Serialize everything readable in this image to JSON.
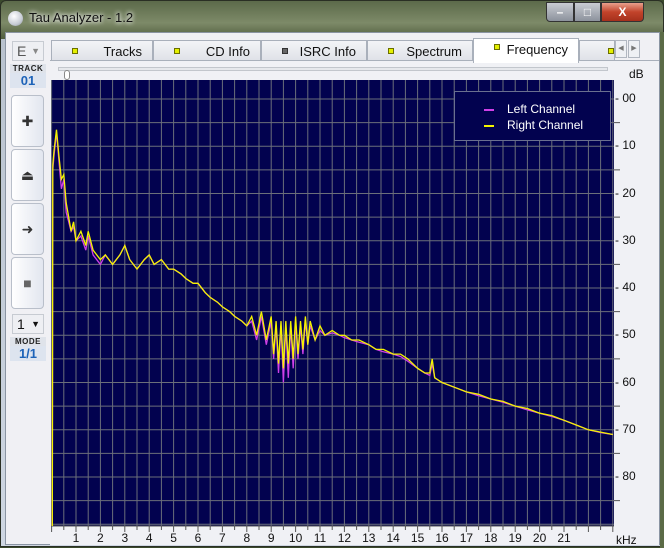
{
  "window": {
    "title": "Tau Analyzer - 1.2",
    "minimize": "–",
    "maximize": "□",
    "close": "X"
  },
  "left_panel": {
    "drive_select": "E",
    "track_label": "TRACK",
    "track_value": "01",
    "buttons": [
      {
        "name": "zoom-in",
        "glyph": "✚"
      },
      {
        "name": "eject",
        "glyph": "⏏"
      },
      {
        "name": "play",
        "glyph": "➜"
      },
      {
        "name": "stop",
        "glyph": "■"
      }
    ],
    "mode_select": "1",
    "mode_label": "MODE",
    "mode_value": "1/1"
  },
  "tabs": [
    {
      "label": "Tracks",
      "indicator": "#e4f000",
      "active": false
    },
    {
      "label": "CD Info",
      "indicator": "#e4f000",
      "active": false
    },
    {
      "label": "ISRC Info",
      "indicator": "#666666",
      "active": false
    },
    {
      "label": "Spectrum",
      "indicator": "#e4f000",
      "active": false
    },
    {
      "label": "Frequency",
      "indicator": "#e4f000",
      "active": true
    },
    {
      "label": "",
      "indicator": "#e4f000",
      "active": false
    }
  ],
  "tab_scroll": {
    "left": "◀",
    "right": "▶"
  },
  "chart_data": {
    "type": "line",
    "xlabel": "kHz",
    "ylabel": "dB",
    "xlim": [
      0,
      23.1
    ],
    "ylim": [
      -3.8,
      90.6
    ],
    "y_inverted": true,
    "grid": true,
    "xticks": [
      1,
      2,
      3,
      4,
      5,
      6,
      7,
      8,
      9,
      10,
      11,
      12,
      13,
      14,
      15,
      16,
      17,
      18,
      19,
      20,
      21
    ],
    "yticks": [
      {
        "v": 0,
        "label": "00"
      },
      {
        "v": 10,
        "label": "10"
      },
      {
        "v": 20,
        "label": "20"
      },
      {
        "v": 30,
        "label": "30"
      },
      {
        "v": 40,
        "label": "40"
      },
      {
        "v": 50,
        "label": "50"
      },
      {
        "v": 60,
        "label": "60"
      },
      {
        "v": 70,
        "label": "70"
      },
      {
        "v": 80,
        "label": "80"
      }
    ],
    "legend_position": "top-right",
    "background": "#02024f",
    "grid_color": "#6b6f7a",
    "series": [
      {
        "name": "Left Channel",
        "color": "#d040e8",
        "points": [
          [
            0.03,
            90.6
          ],
          [
            0.05,
            15
          ],
          [
            0.1,
            12
          ],
          [
            0.2,
            7
          ],
          [
            0.3,
            13
          ],
          [
            0.4,
            19
          ],
          [
            0.5,
            17
          ],
          [
            0.6,
            24
          ],
          [
            0.7,
            26
          ],
          [
            0.8,
            28
          ],
          [
            0.9,
            27
          ],
          [
            1.0,
            30
          ],
          [
            1.2,
            29
          ],
          [
            1.4,
            32
          ],
          [
            1.5,
            29
          ],
          [
            1.7,
            33
          ],
          [
            2.0,
            35
          ],
          [
            2.2,
            33
          ],
          [
            2.5,
            35
          ],
          [
            2.8,
            33
          ],
          [
            3.0,
            31
          ],
          [
            3.2,
            34
          ],
          [
            3.5,
            36
          ],
          [
            3.8,
            34
          ],
          [
            4.0,
            33
          ],
          [
            4.2,
            35
          ],
          [
            4.5,
            34
          ],
          [
            4.8,
            36
          ],
          [
            5.0,
            36
          ],
          [
            5.3,
            37
          ],
          [
            5.5,
            38
          ],
          [
            5.8,
            39
          ],
          [
            6.0,
            39
          ],
          [
            6.3,
            41
          ],
          [
            6.5,
            42
          ],
          [
            6.8,
            43
          ],
          [
            7.0,
            44
          ],
          [
            7.3,
            45
          ],
          [
            7.5,
            46
          ],
          [
            7.8,
            47
          ],
          [
            8.0,
            48
          ],
          [
            8.2,
            47
          ],
          [
            8.4,
            51
          ],
          [
            8.6,
            46
          ],
          [
            8.8,
            52
          ],
          [
            9.0,
            47
          ],
          [
            9.1,
            55
          ],
          [
            9.2,
            48
          ],
          [
            9.3,
            58
          ],
          [
            9.4,
            48
          ],
          [
            9.5,
            60
          ],
          [
            9.6,
            48
          ],
          [
            9.7,
            59
          ],
          [
            9.8,
            48
          ],
          [
            9.9,
            57
          ],
          [
            10.0,
            47
          ],
          [
            10.1,
            55
          ],
          [
            10.2,
            48
          ],
          [
            10.3,
            54
          ],
          [
            10.4,
            47
          ],
          [
            10.5,
            52
          ],
          [
            10.6,
            48
          ],
          [
            10.8,
            51
          ],
          [
            11.0,
            49
          ],
          [
            11.2,
            50
          ],
          [
            11.5,
            49.5
          ],
          [
            11.8,
            50
          ],
          [
            12.0,
            50.5
          ],
          [
            12.3,
            51
          ],
          [
            12.6,
            51.5
          ],
          [
            13.0,
            52
          ],
          [
            13.3,
            53
          ],
          [
            13.6,
            53.5
          ],
          [
            14.0,
            54
          ],
          [
            14.3,
            54.5
          ],
          [
            14.6,
            55.5
          ],
          [
            15.0,
            57
          ],
          [
            15.3,
            58
          ],
          [
            15.5,
            58.5
          ],
          [
            15.6,
            56
          ],
          [
            15.7,
            59
          ],
          [
            16.0,
            60
          ],
          [
            16.5,
            61
          ],
          [
            17.0,
            62
          ],
          [
            17.5,
            62.8
          ],
          [
            18.0,
            63.5
          ],
          [
            18.5,
            64.2
          ],
          [
            19.0,
            65
          ],
          [
            19.5,
            65.8
          ],
          [
            20.0,
            66.5
          ],
          [
            20.5,
            67.2
          ],
          [
            21.0,
            68
          ],
          [
            21.5,
            69
          ],
          [
            22.0,
            70
          ],
          [
            22.5,
            70.6
          ],
          [
            23.0,
            71
          ]
        ]
      },
      {
        "name": "Right Channel",
        "color": "#f4f400",
        "points": [
          [
            0.03,
            90.6
          ],
          [
            0.05,
            14
          ],
          [
            0.1,
            11
          ],
          [
            0.2,
            6.5
          ],
          [
            0.3,
            12
          ],
          [
            0.4,
            17
          ],
          [
            0.5,
            16
          ],
          [
            0.6,
            22
          ],
          [
            0.7,
            25
          ],
          [
            0.8,
            28
          ],
          [
            0.9,
            26
          ],
          [
            1.0,
            30
          ],
          [
            1.2,
            28
          ],
          [
            1.4,
            31
          ],
          [
            1.5,
            28
          ],
          [
            1.7,
            32
          ],
          [
            2.0,
            34
          ],
          [
            2.2,
            33
          ],
          [
            2.5,
            35
          ],
          [
            2.8,
            33
          ],
          [
            3.0,
            31
          ],
          [
            3.2,
            34
          ],
          [
            3.5,
            36
          ],
          [
            3.8,
            34
          ],
          [
            4.0,
            33
          ],
          [
            4.2,
            35
          ],
          [
            4.5,
            34
          ],
          [
            4.8,
            36
          ],
          [
            5.0,
            36
          ],
          [
            5.3,
            37
          ],
          [
            5.5,
            38
          ],
          [
            5.8,
            39
          ],
          [
            6.0,
            39
          ],
          [
            6.3,
            41
          ],
          [
            6.5,
            42
          ],
          [
            6.8,
            43
          ],
          [
            7.0,
            44
          ],
          [
            7.3,
            45
          ],
          [
            7.5,
            46
          ],
          [
            7.8,
            47
          ],
          [
            8.0,
            48
          ],
          [
            8.2,
            46
          ],
          [
            8.4,
            50
          ],
          [
            8.6,
            45
          ],
          [
            8.8,
            51
          ],
          [
            9.0,
            46
          ],
          [
            9.1,
            54
          ],
          [
            9.2,
            47
          ],
          [
            9.3,
            56
          ],
          [
            9.4,
            47
          ],
          [
            9.5,
            57
          ],
          [
            9.6,
            47
          ],
          [
            9.7,
            56
          ],
          [
            9.8,
            47
          ],
          [
            9.9,
            55
          ],
          [
            10.0,
            46
          ],
          [
            10.1,
            54
          ],
          [
            10.2,
            47
          ],
          [
            10.3,
            53
          ],
          [
            10.4,
            46
          ],
          [
            10.5,
            52
          ],
          [
            10.6,
            47
          ],
          [
            10.8,
            51
          ],
          [
            11.0,
            48
          ],
          [
            11.2,
            50
          ],
          [
            11.5,
            49
          ],
          [
            11.8,
            50
          ],
          [
            12.0,
            50
          ],
          [
            12.3,
            51
          ],
          [
            12.6,
            51
          ],
          [
            13.0,
            52
          ],
          [
            13.3,
            53
          ],
          [
            13.6,
            53
          ],
          [
            14.0,
            54
          ],
          [
            14.3,
            54
          ],
          [
            14.6,
            55
          ],
          [
            15.0,
            57
          ],
          [
            15.3,
            58
          ],
          [
            15.5,
            58
          ],
          [
            15.6,
            55
          ],
          [
            15.7,
            59
          ],
          [
            16.0,
            60
          ],
          [
            16.5,
            61
          ],
          [
            17.0,
            62
          ],
          [
            17.5,
            62.5
          ],
          [
            18.0,
            63.5
          ],
          [
            18.5,
            64
          ],
          [
            19.0,
            65
          ],
          [
            19.5,
            65.5
          ],
          [
            20.0,
            66.5
          ],
          [
            20.5,
            67
          ],
          [
            21.0,
            68
          ],
          [
            21.5,
            69
          ],
          [
            22.0,
            70
          ],
          [
            22.5,
            70.5
          ],
          [
            23.0,
            71
          ]
        ]
      }
    ]
  }
}
